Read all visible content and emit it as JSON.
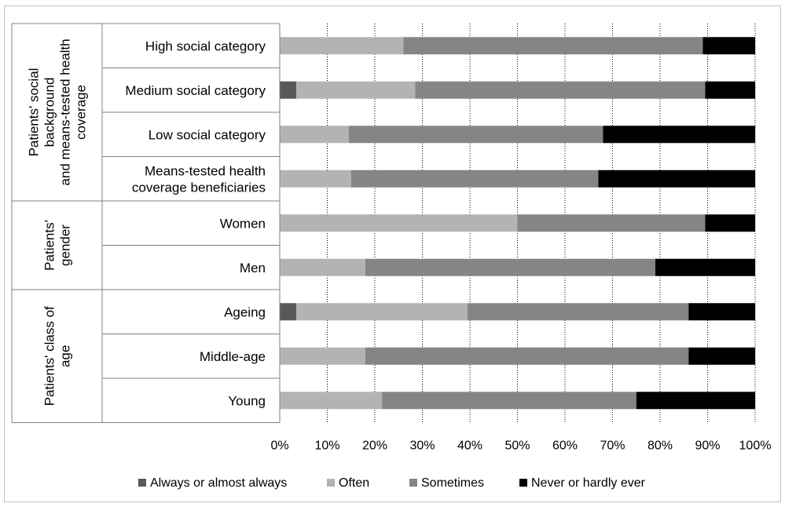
{
  "chart_data": {
    "type": "bar",
    "orientation": "horizontal",
    "stacked": "percent",
    "groups": [
      {
        "name": "Patients' social background and means-tested health coverage",
        "lines": [
          "Patients' social",
          "background",
          "and means-tested health",
          "coverage"
        ],
        "categories": [
          "High social category",
          "Medium social category",
          "Low social category",
          "Means-tested health coverage beneficiaries"
        ]
      },
      {
        "name": "Patients' gender",
        "lines": [
          "Patients'",
          "gender"
        ],
        "categories": [
          "Women",
          "Men"
        ]
      },
      {
        "name": "Patients' class of age",
        "lines": [
          "Patients' class of",
          "age"
        ],
        "categories": [
          "Ageing",
          "Middle-age",
          "Young"
        ]
      }
    ],
    "categories": [
      "High social category",
      "Medium social category",
      "Low social category",
      "Means-tested health coverage beneficiaries",
      "Women",
      "Men",
      "Ageing",
      "Middle-age",
      "Young"
    ],
    "category_lines": [
      [
        "High social category"
      ],
      [
        "Medium social category"
      ],
      [
        "Low social category"
      ],
      [
        "Means-tested health",
        "coverage beneficiaries"
      ],
      [
        "Women"
      ],
      [
        "Men"
      ],
      [
        "Ageing"
      ],
      [
        "Middle-age"
      ],
      [
        "Young"
      ]
    ],
    "series": [
      {
        "name": "Always or almost always",
        "color": "#595959",
        "values": [
          0,
          3.5,
          0,
          0,
          0,
          0,
          3.5,
          0,
          0
        ]
      },
      {
        "name": "Often",
        "color": "#b3b3b3",
        "values": [
          26,
          25,
          14.5,
          15,
          50,
          18,
          36,
          18,
          21.5
        ]
      },
      {
        "name": "Sometimes",
        "color": "#858585",
        "values": [
          63,
          61,
          53.5,
          52,
          39.5,
          61,
          46.5,
          68,
          53.5
        ]
      },
      {
        "name": "Never or hardly ever",
        "color": "#000000",
        "values": [
          11,
          10.5,
          32,
          33,
          10.5,
          21,
          14,
          14,
          25
        ]
      }
    ],
    "xlim": [
      0,
      100
    ],
    "x_ticks": [
      "0%",
      "10%",
      "20%",
      "30%",
      "40%",
      "50%",
      "60%",
      "70%",
      "80%",
      "90%",
      "100%"
    ],
    "grid": "vertical dotted",
    "legend_position": "bottom"
  }
}
